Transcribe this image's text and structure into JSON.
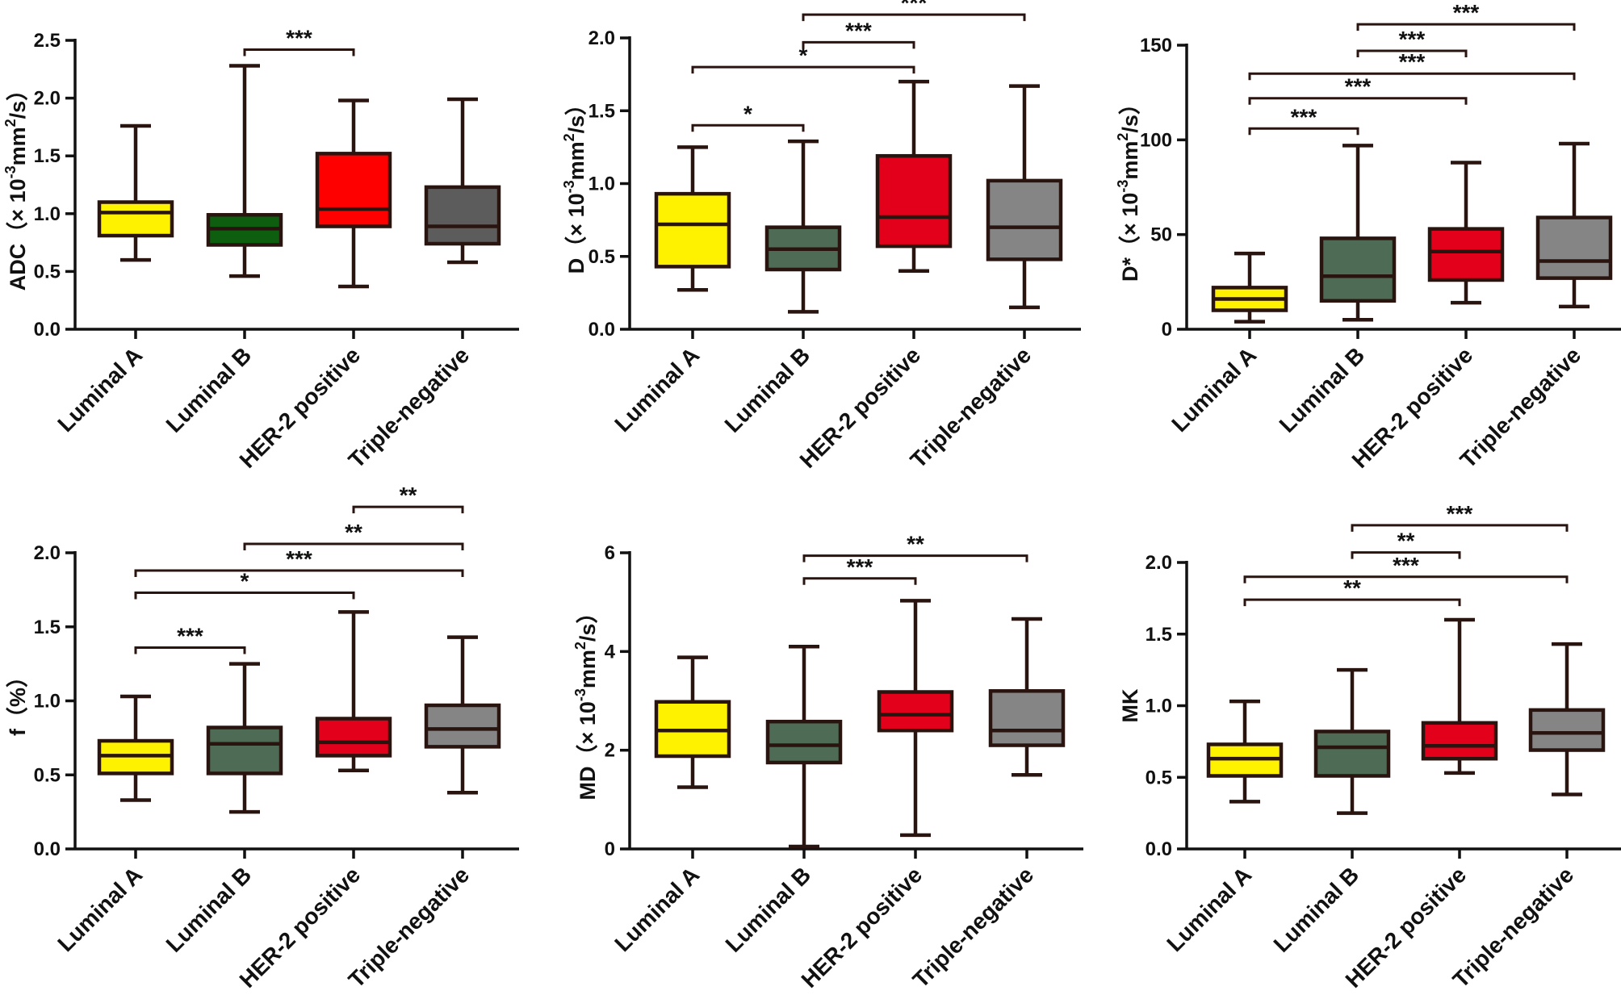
{
  "categories": [
    "Luminal A",
    "Luminal B",
    "HER-2 positive",
    "Triple-negative"
  ],
  "colors": {
    "Luminal A": "#fff200",
    "Luminal B": "#4e6b55",
    "HER-2 positive": "#e3001b",
    "Triple-negative": "#858585",
    "axis": "#111111",
    "box_stroke": "#2a1410"
  },
  "chart_data": [
    {
      "id": "adc",
      "type": "box",
      "ylabel": "ADC（× 10-3mm2/s）",
      "ylabel_parts": [
        {
          "t": "ADC（× 10"
        },
        {
          "t": "-3",
          "sup": true
        },
        {
          "t": "mm"
        },
        {
          "t": "2",
          "sup": true
        },
        {
          "t": "/s）"
        }
      ],
      "ylim": [
        0,
        2.5
      ],
      "yticks": [
        "0.0",
        "0.5",
        "1.0",
        "1.5",
        "2.0",
        "2.5"
      ],
      "tick_values": [
        0,
        0.5,
        1.0,
        1.5,
        2.0,
        2.5
      ],
      "boxes": [
        {
          "category": "Luminal A",
          "min": 0.6,
          "q1": 0.81,
          "median": 1.01,
          "q3": 1.1,
          "max": 1.76,
          "color": "#fff200"
        },
        {
          "category": "Luminal B",
          "min": 0.46,
          "q1": 0.73,
          "median": 0.87,
          "q3": 0.99,
          "max": 2.28,
          "color": "#0e5e10"
        },
        {
          "category": "HER-2 positive",
          "min": 0.37,
          "q1": 0.89,
          "median": 1.04,
          "q3": 1.52,
          "max": 1.98,
          "color": "#ff0000"
        },
        {
          "category": "Triple-negative",
          "min": 0.58,
          "q1": 0.74,
          "median": 0.89,
          "q3": 1.23,
          "max": 1.99,
          "color": "#5c5c5c"
        }
      ],
      "brackets": [
        {
          "from": 1,
          "to": 2,
          "y": 2.42,
          "label": "***"
        }
      ]
    },
    {
      "id": "d",
      "type": "box",
      "ylabel": "D（× 10-3mm2/s）",
      "ylabel_parts": [
        {
          "t": "D（× 10"
        },
        {
          "t": "-3",
          "sup": true
        },
        {
          "t": "mm"
        },
        {
          "t": "2",
          "sup": true
        },
        {
          "t": "/s）"
        }
      ],
      "ylim": [
        0,
        2.0
      ],
      "yticks": [
        "0.0",
        "0.5",
        "1.0",
        "1.5",
        "2.0"
      ],
      "tick_values": [
        0,
        0.5,
        1.0,
        1.5,
        2.0
      ],
      "boxes": [
        {
          "category": "Luminal A",
          "min": 0.27,
          "q1": 0.43,
          "median": 0.72,
          "q3": 0.93,
          "max": 1.25,
          "color": "#fff200"
        },
        {
          "category": "Luminal B",
          "min": 0.12,
          "q1": 0.41,
          "median": 0.55,
          "q3": 0.7,
          "max": 1.29,
          "color": "#4e6b55"
        },
        {
          "category": "HER-2 positive",
          "min": 0.4,
          "q1": 0.57,
          "median": 0.77,
          "q3": 1.19,
          "max": 1.7,
          "color": "#e3001b"
        },
        {
          "category": "Triple-negative",
          "min": 0.15,
          "q1": 0.48,
          "median": 0.7,
          "q3": 1.02,
          "max": 1.67,
          "color": "#858585"
        }
      ],
      "brackets": [
        {
          "from": 0,
          "to": 1,
          "y": 1.4,
          "label": "*"
        },
        {
          "from": 0,
          "to": 2,
          "y": 1.8,
          "label": "*"
        },
        {
          "from": 1,
          "to": 2,
          "y": 1.97,
          "label": "***"
        },
        {
          "from": 1,
          "to": 3,
          "y": 2.16,
          "label": "***"
        }
      ]
    },
    {
      "id": "dstar",
      "type": "box",
      "ylabel": "D*（× 10-3mm2/s）",
      "ylabel_parts": [
        {
          "t": "D*（× 10"
        },
        {
          "t": "-3",
          "sup": true
        },
        {
          "t": "mm"
        },
        {
          "t": "2",
          "sup": true
        },
        {
          "t": "/s）"
        }
      ],
      "ylim": [
        0,
        150
      ],
      "yticks": [
        "0",
        "50",
        "100",
        "150"
      ],
      "tick_values": [
        0,
        50,
        100,
        150
      ],
      "boxes": [
        {
          "category": "Luminal A",
          "min": 4,
          "q1": 10,
          "median": 16,
          "q3": 22,
          "max": 40,
          "color": "#fff200"
        },
        {
          "category": "Luminal B",
          "min": 5,
          "q1": 15,
          "median": 28,
          "q3": 48,
          "max": 97,
          "color": "#4e6b55"
        },
        {
          "category": "HER-2 positive",
          "min": 14,
          "q1": 26,
          "median": 41,
          "q3": 53,
          "max": 88,
          "color": "#e3001b"
        },
        {
          "category": "Triple-negative",
          "min": 12,
          "q1": 27,
          "median": 36,
          "q3": 59,
          "max": 98,
          "color": "#858585"
        }
      ],
      "brackets": [
        {
          "from": 0,
          "to": 1,
          "y": 106,
          "label": "***"
        },
        {
          "from": 0,
          "to": 2,
          "y": 122,
          "label": "***"
        },
        {
          "from": 0,
          "to": 3,
          "y": 135,
          "label": "***"
        },
        {
          "from": 1,
          "to": 2,
          "y": 147,
          "label": "***"
        },
        {
          "from": 1,
          "to": 3,
          "y": 161,
          "label": "***"
        }
      ]
    },
    {
      "id": "f",
      "type": "box",
      "ylabel": "f（%）",
      "ylabel_parts": [
        {
          "t": "f（%）"
        }
      ],
      "ylim": [
        0,
        2.0
      ],
      "yticks": [
        "0.0",
        "0.5",
        "1.0",
        "1.5",
        "2.0"
      ],
      "tick_values": [
        0,
        0.5,
        1.0,
        1.5,
        2.0
      ],
      "boxes": [
        {
          "category": "Luminal A",
          "min": 0.33,
          "q1": 0.51,
          "median": 0.63,
          "q3": 0.73,
          "max": 1.03,
          "color": "#fff200"
        },
        {
          "category": "Luminal B",
          "min": 0.25,
          "q1": 0.51,
          "median": 0.71,
          "q3": 0.82,
          "max": 1.25,
          "color": "#4e6b55"
        },
        {
          "category": "HER-2 positive",
          "min": 0.53,
          "q1": 0.63,
          "median": 0.72,
          "q3": 0.88,
          "max": 1.6,
          "color": "#e3001b"
        },
        {
          "category": "Triple-negative",
          "min": 0.38,
          "q1": 0.69,
          "median": 0.81,
          "q3": 0.97,
          "max": 1.43,
          "color": "#858585"
        }
      ],
      "brackets": [
        {
          "from": 0,
          "to": 1,
          "y": 1.36,
          "label": "***"
        },
        {
          "from": 0,
          "to": 2,
          "y": 1.73,
          "label": "*"
        },
        {
          "from": 0,
          "to": 3,
          "y": 1.88,
          "label": "***"
        },
        {
          "from": 1,
          "to": 3,
          "y": 2.06,
          "label": "**"
        },
        {
          "from": 2,
          "to": 3,
          "y": 2.31,
          "label": "**"
        }
      ]
    },
    {
      "id": "md",
      "type": "box",
      "ylabel": "MD（× 10-3mm2/s）",
      "ylabel_parts": [
        {
          "t": "MD（× 10"
        },
        {
          "t": "-3",
          "sup": true
        },
        {
          "t": "mm"
        },
        {
          "t": "2",
          "sup": true
        },
        {
          "t": "/s）"
        }
      ],
      "ylim": [
        0,
        6
      ],
      "yticks": [
        "0",
        "2",
        "4",
        "6"
      ],
      "tick_values": [
        0,
        2,
        4,
        6
      ],
      "boxes": [
        {
          "category": "Luminal A",
          "min": 1.25,
          "q1": 1.88,
          "median": 2.4,
          "q3": 2.98,
          "max": 3.88,
          "color": "#fff200"
        },
        {
          "category": "Luminal B",
          "min": 0.05,
          "q1": 1.75,
          "median": 2.1,
          "q3": 2.58,
          "max": 4.1,
          "color": "#4e6b55"
        },
        {
          "category": "HER-2 positive",
          "min": 0.28,
          "q1": 2.4,
          "median": 2.72,
          "q3": 3.18,
          "max": 5.03,
          "color": "#e3001b"
        },
        {
          "category": "Triple-negative",
          "min": 1.5,
          "q1": 2.1,
          "median": 2.4,
          "q3": 3.2,
          "max": 4.66,
          "color": "#858585"
        }
      ],
      "brackets": [
        {
          "from": 1,
          "to": 2,
          "y": 5.48,
          "label": "***"
        },
        {
          "from": 1,
          "to": 3,
          "y": 5.94,
          "label": "**"
        }
      ]
    },
    {
      "id": "mk",
      "type": "box",
      "ylabel": "MK",
      "ylabel_parts": [
        {
          "t": "MK"
        }
      ],
      "ylim": [
        0,
        2.0
      ],
      "yticks": [
        "0.0",
        "0.5",
        "1.0",
        "1.5",
        "2.0"
      ],
      "tick_values": [
        0,
        0.5,
        1.0,
        1.5,
        2.0
      ],
      "boxes": [
        {
          "category": "Luminal A",
          "min": 0.33,
          "q1": 0.51,
          "median": 0.63,
          "q3": 0.73,
          "max": 1.03,
          "color": "#fff200"
        },
        {
          "category": "Luminal B",
          "min": 0.25,
          "q1": 0.51,
          "median": 0.71,
          "q3": 0.82,
          "max": 1.25,
          "color": "#4e6b55"
        },
        {
          "category": "HER-2 positive",
          "min": 0.53,
          "q1": 0.63,
          "median": 0.72,
          "q3": 0.88,
          "max": 1.6,
          "color": "#e3001b"
        },
        {
          "category": "Triple-negative",
          "min": 0.38,
          "q1": 0.69,
          "median": 0.81,
          "q3": 0.97,
          "max": 1.43,
          "color": "#858585"
        }
      ],
      "brackets": [
        {
          "from": 0,
          "to": 2,
          "y": 1.74,
          "label": "**"
        },
        {
          "from": 0,
          "to": 3,
          "y": 1.9,
          "label": "***"
        },
        {
          "from": 1,
          "to": 2,
          "y": 2.07,
          "label": "**"
        },
        {
          "from": 1,
          "to": 3,
          "y": 2.26,
          "label": "***"
        }
      ]
    }
  ]
}
